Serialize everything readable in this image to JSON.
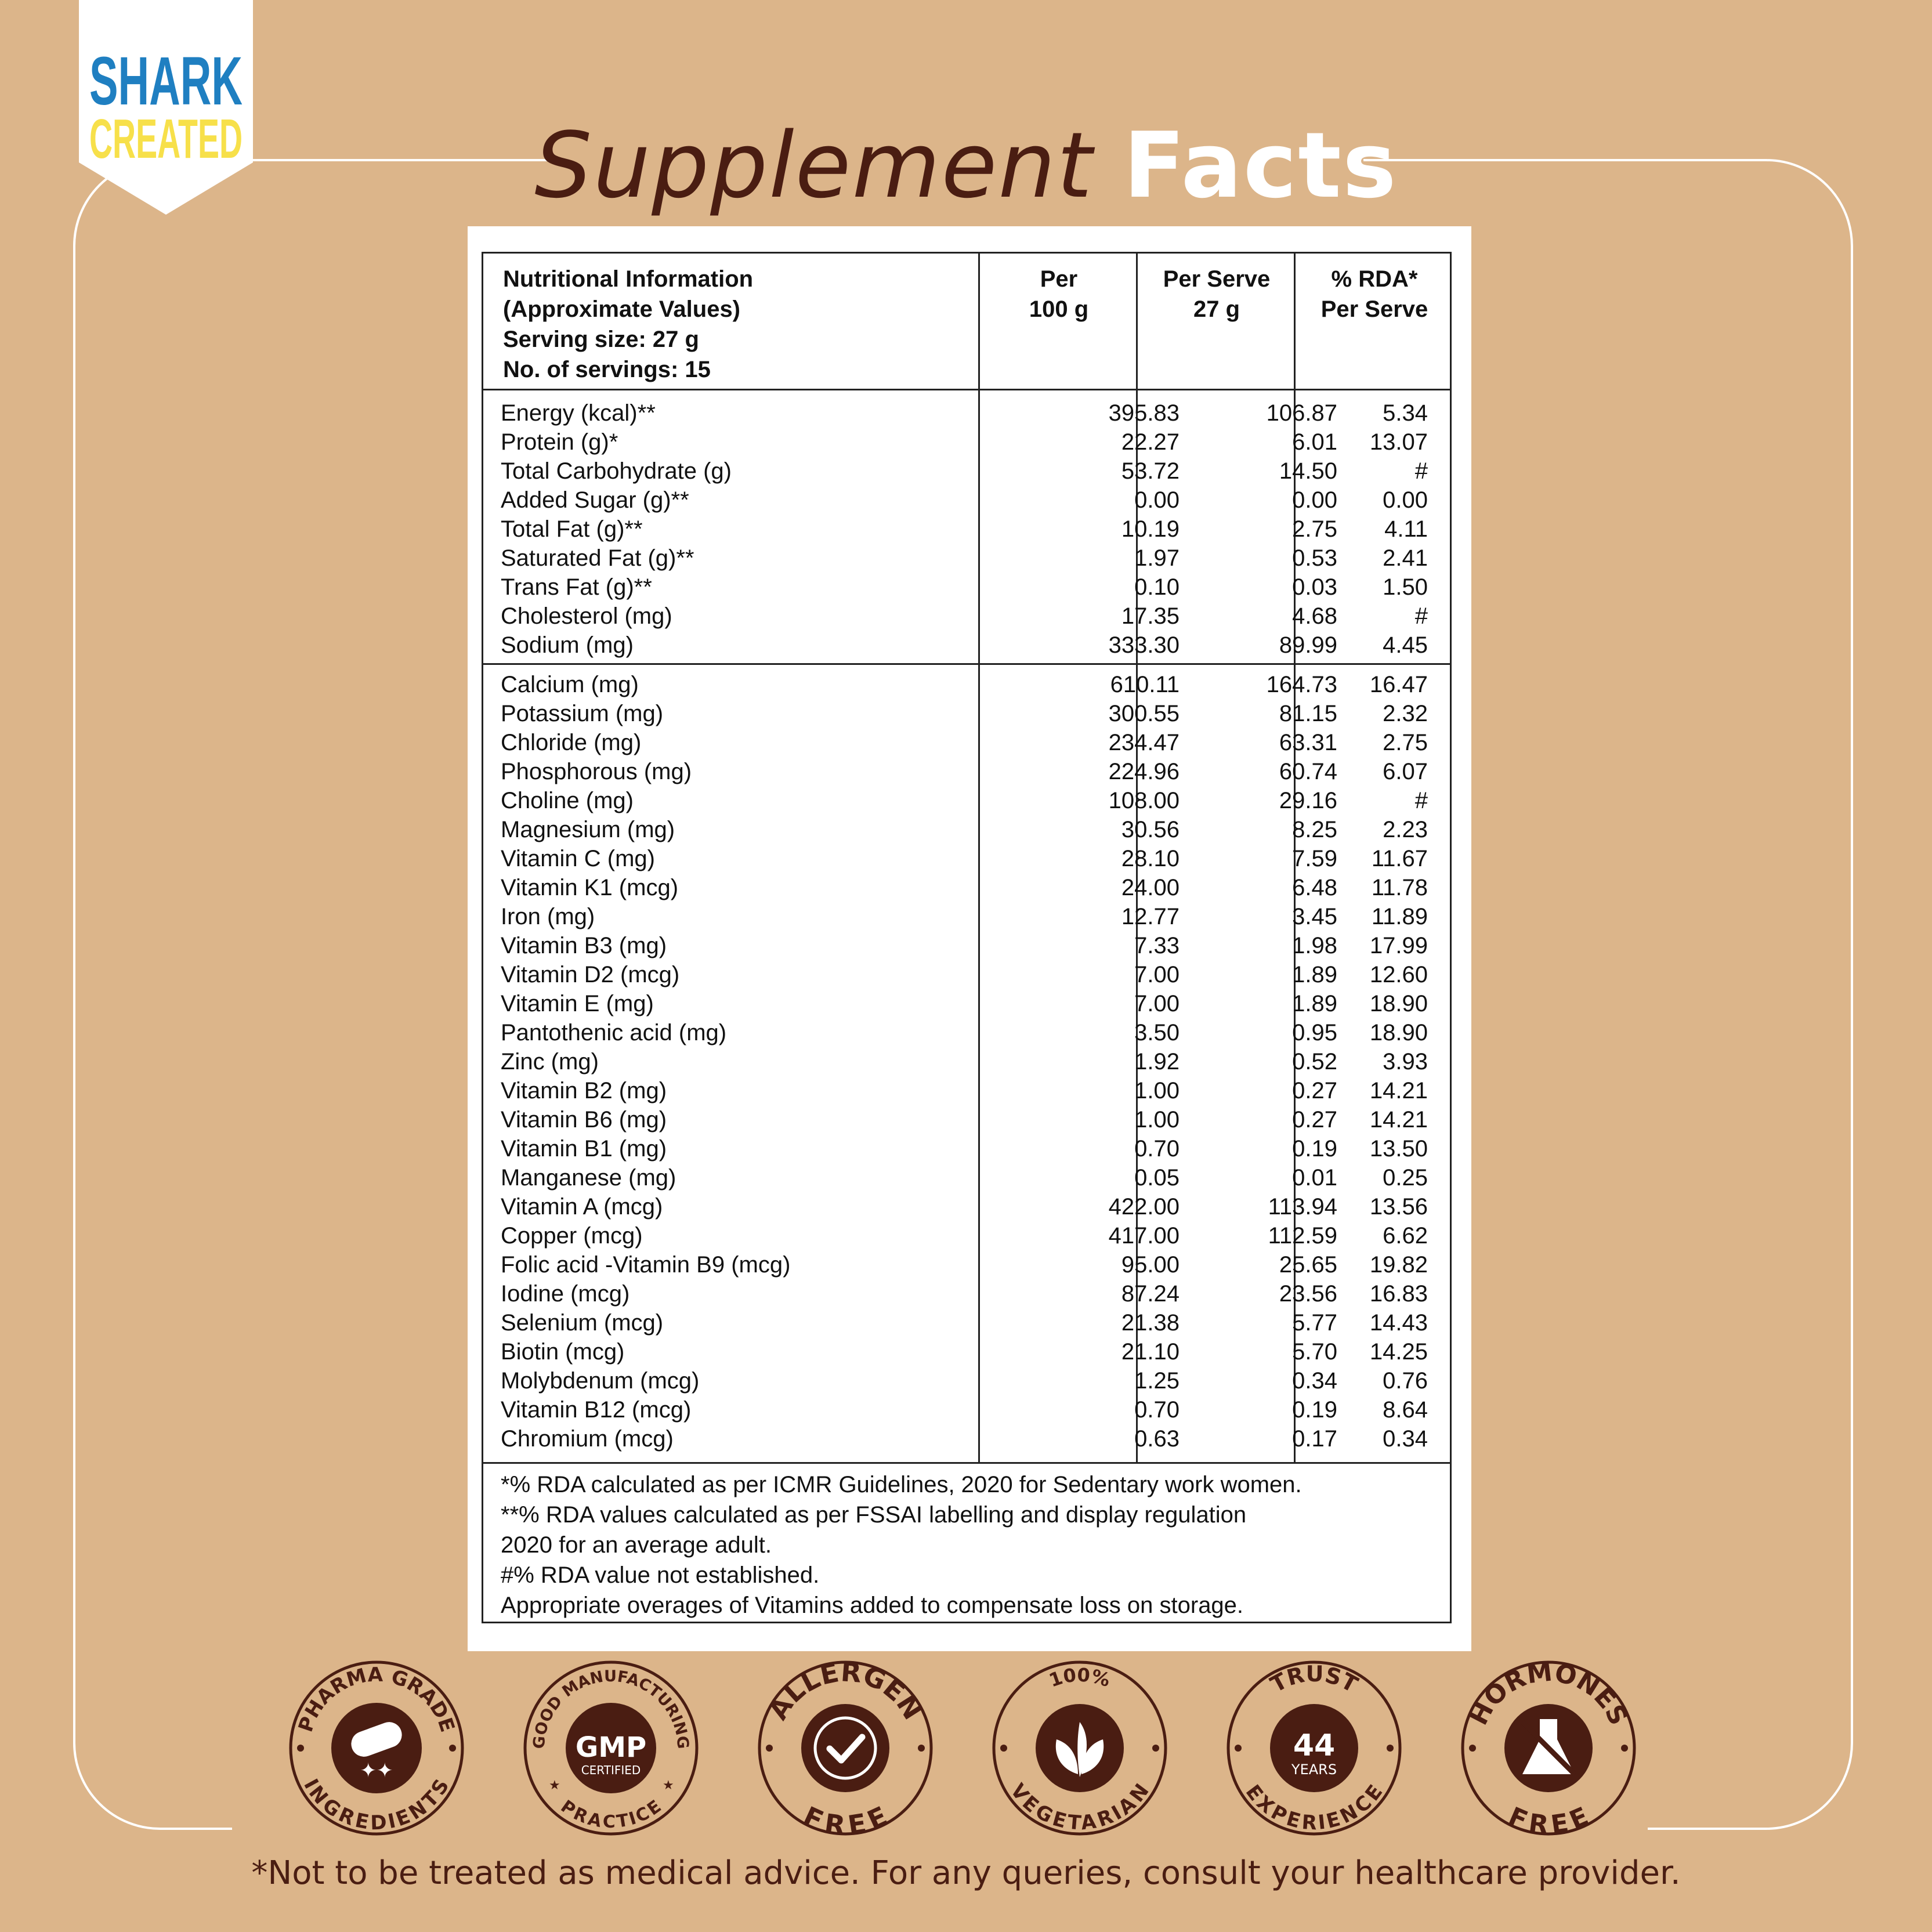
{
  "brand": {
    "line1": "SHARK",
    "line2": "CREATED",
    "color_blue": "#1f7fc1",
    "color_yellow": "#f7e04a"
  },
  "title": {
    "part1": "Supplement",
    "part2": "Facts"
  },
  "table": {
    "header": {
      "info_lines": [
        "Nutritional Information",
        "(Approximate Values)",
        "Serving size: 27 g",
        "No. of servings: 15"
      ],
      "col1": [
        "Per",
        "100 g"
      ],
      "col2": [
        "Per Serve",
        "27 g"
      ],
      "col3": [
        "% RDA*",
        "Per Serve"
      ]
    },
    "rows": [
      {
        "name": "Energy (kcal)**",
        "per100": "395.83",
        "perServe": "106.87",
        "rda": "5.34"
      },
      {
        "name": "Protein (g)*",
        "per100": "22.27",
        "perServe": "6.01",
        "rda": "13.07"
      },
      {
        "name": "Total Carbohydrate (g)",
        "per100": "53.72",
        "perServe": "14.50",
        "rda": "#"
      },
      {
        "name": "Added Sugar (g)**",
        "per100": "0.00",
        "perServe": "0.00",
        "rda": "0.00"
      },
      {
        "name": "Total Fat (g)**",
        "per100": "10.19",
        "perServe": "2.75",
        "rda": "4.11"
      },
      {
        "name": "Saturated Fat (g)**",
        "per100": "1.97",
        "perServe": "0.53",
        "rda": "2.41"
      },
      {
        "name": "Trans Fat (g)**",
        "per100": "0.10",
        "perServe": "0.03",
        "rda": "1.50"
      },
      {
        "name": "Cholesterol (mg)",
        "per100": "17.35",
        "perServe": "4.68",
        "rda": "#"
      },
      {
        "name": "Sodium (mg)",
        "per100": "333.30",
        "perServe": "89.99",
        "rda": "4.45"
      },
      {
        "name": "Calcium (mg)",
        "per100": "610.11",
        "perServe": "164.73",
        "rda": "16.47"
      },
      {
        "name": "Potassium (mg)",
        "per100": "300.55",
        "perServe": "81.15",
        "rda": "2.32"
      },
      {
        "name": "Chloride (mg)",
        "per100": "234.47",
        "perServe": "63.31",
        "rda": "2.75"
      },
      {
        "name": "Phosphorous (mg)",
        "per100": "224.96",
        "perServe": "60.74",
        "rda": "6.07"
      },
      {
        "name": "Choline (mg)",
        "per100": "108.00",
        "perServe": "29.16",
        "rda": "#"
      },
      {
        "name": "Magnesium (mg)",
        "per100": "30.56",
        "perServe": "8.25",
        "rda": "2.23"
      },
      {
        "name": "Vitamin C (mg)",
        "per100": "28.10",
        "perServe": "7.59",
        "rda": "11.67"
      },
      {
        "name": "Vitamin K1 (mcg)",
        "per100": "24.00",
        "perServe": "6.48",
        "rda": "11.78"
      },
      {
        "name": "Iron (mg)",
        "per100": "12.77",
        "perServe": "3.45",
        "rda": "11.89"
      },
      {
        "name": "Vitamin B3 (mg)",
        "per100": "7.33",
        "perServe": "1.98",
        "rda": "17.99"
      },
      {
        "name": "Vitamin D2 (mcg)",
        "per100": "7.00",
        "perServe": "1.89",
        "rda": "12.60"
      },
      {
        "name": "Vitamin E (mg)",
        "per100": "7.00",
        "perServe": "1.89",
        "rda": "18.90"
      },
      {
        "name": "Pantothenic acid (mg)",
        "per100": "3.50",
        "perServe": "0.95",
        "rda": "18.90"
      },
      {
        "name": "Zinc (mg)",
        "per100": "1.92",
        "perServe": "0.52",
        "rda": "3.93"
      },
      {
        "name": "Vitamin B2 (mg)",
        "per100": "1.00",
        "perServe": "0.27",
        "rda": "14.21"
      },
      {
        "name": "Vitamin B6 (mg)",
        "per100": "1.00",
        "perServe": "0.27",
        "rda": "14.21"
      },
      {
        "name": "Vitamin B1 (mg)",
        "per100": "0.70",
        "perServe": "0.19",
        "rda": "13.50"
      },
      {
        "name": "Manganese (mg)",
        "per100": "0.05",
        "perServe": "0.01",
        "rda": "0.25"
      },
      {
        "name": "Vitamin A (mcg)",
        "per100": "422.00",
        "perServe": "113.94",
        "rda": "13.56"
      },
      {
        "name": "Copper (mcg)",
        "per100": "417.00",
        "perServe": "112.59",
        "rda": "6.62"
      },
      {
        "name": "Folic acid -Vitamin B9 (mcg)",
        "per100": "95.00",
        "perServe": "25.65",
        "rda": "19.82"
      },
      {
        "name": "Iodine (mcg)",
        "per100": "87.24",
        "perServe": "23.56",
        "rda": "16.83"
      },
      {
        "name": "Selenium (mcg)",
        "per100": "21.38",
        "perServe": "5.77",
        "rda": "14.43"
      },
      {
        "name": "Biotin (mcg)",
        "per100": "21.10",
        "perServe": "5.70",
        "rda": "14.25"
      },
      {
        "name": "Molybdenum (mcg)",
        "per100": "1.25",
        "perServe": "0.34",
        "rda": "0.76"
      },
      {
        "name": "Vitamin B12 (mcg)",
        "per100": "0.70",
        "perServe": "0.19",
        "rda": "8.64"
      },
      {
        "name": "Chromium (mcg)",
        "per100": "0.63",
        "perServe": "0.17",
        "rda": "0.34"
      }
    ],
    "footnotes": [
      "*% RDA calculated as per ICMR Guidelines, 2020 for Sedentary work women.",
      "**% RDA values calculated as per FSSAI labelling and display regulation",
      "2020 for an average adult.",
      "#% RDA value not established.",
      "Appropriate overages of Vitamins added to compensate loss on storage."
    ]
  },
  "badges": [
    {
      "id": "pharma",
      "top": "PHARMA GRADE",
      "bottom": "INGREDIENTS",
      "icon": "capsule-icon"
    },
    {
      "id": "gmp",
      "top": "GOOD MANUFACTURING",
      "bottom": "PRACTICE",
      "center": "GMP",
      "sub": "CERTIFIED",
      "icon": "gmp-seal-icon"
    },
    {
      "id": "allergen",
      "top": "ALLERGEN",
      "bottom": "FREE",
      "icon": "checkmark-seal-icon"
    },
    {
      "id": "veg",
      "top": "100%",
      "bottom": "VEGETARIAN",
      "icon": "leaf-icon"
    },
    {
      "id": "trust",
      "top": "TRUST",
      "bottom": "EXPERIENCE",
      "center": "44",
      "sub": "YEARS",
      "icon": "trust-seal-icon"
    },
    {
      "id": "hormones",
      "top": "HORMONES",
      "bottom": "FREE",
      "icon": "flask-icon"
    }
  ],
  "disclaimer": "*Not to be treated as medical advice. For any queries, consult your healthcare provider.",
  "colors": {
    "background": "#dcb58a",
    "brown": "#4a1d12",
    "white": "#ffffff"
  }
}
